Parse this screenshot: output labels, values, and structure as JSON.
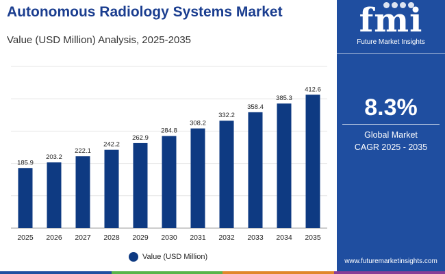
{
  "header": {
    "title": "Autonomous Radiology Systems Market",
    "subtitle": "Value (USD Million) Analysis, 2025-2035"
  },
  "chart_data": {
    "type": "bar",
    "categories": [
      "2025",
      "2026",
      "2027",
      "2028",
      "2029",
      "2030",
      "2031",
      "2032",
      "2033",
      "2034",
      "2035"
    ],
    "series": [
      {
        "name": "Value (USD Million)",
        "values": [
          185.9,
          203.2,
          222.1,
          242.2,
          262.9,
          284.8,
          308.2,
          332.2,
          358.4,
          385.3,
          412.6
        ]
      }
    ],
    "ylim": [
      0,
      500
    ],
    "grid": true,
    "legend_position": "bottom-center",
    "data_labels": true
  },
  "sidebar": {
    "logo_text": "fmi",
    "logo_subtitle": "Future Market Insights",
    "cagr_value": "8.3%",
    "cagr_label_line1": "Global Market",
    "cagr_label_line2": "CAGR 2025 - 2035",
    "website": "www.futuremarketinsights.com"
  },
  "colors": {
    "bar": "#0e3a82",
    "title": "#1a3d8f",
    "sidebar_bg": "#1f4ea0",
    "stripe": [
      "#1f4ea0",
      "#58b44a",
      "#e1872b",
      "#8a3c96"
    ]
  }
}
